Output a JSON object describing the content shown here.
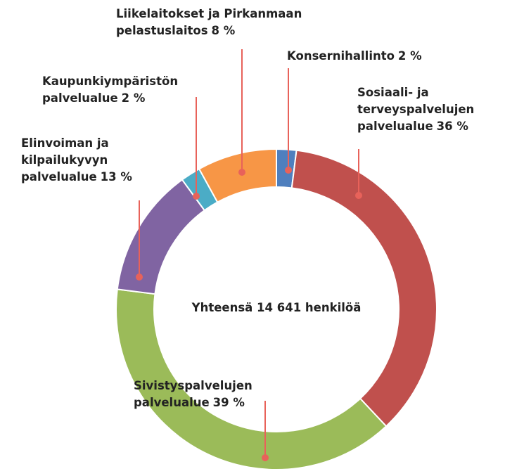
{
  "chart_data": {
    "type": "donut",
    "center_text": "Yhteensä 14 641 henkilöä",
    "categories": [
      "Konsernihallinto",
      "Sosiaali- ja terveyspalvelujen palvelualue",
      "Sivistyspalvelujen palvelualue",
      "Elinvoiman ja kilpailukyvyn palvelualue",
      "Kaupunkiympäristön palvelualue",
      "Liikelaitokset ja Pirkanmaan pelastuslaitos"
    ],
    "values": [
      2,
      36,
      39,
      13,
      2,
      8
    ],
    "value_labels": [
      "2 %",
      "36 %",
      "39 %",
      "13 %",
      "2 %",
      "8 %"
    ],
    "colors": [
      "#4f7fbe",
      "#c0504d",
      "#9bbb59",
      "#8064a2",
      "#4bacc6",
      "#f79646"
    ]
  }
}
